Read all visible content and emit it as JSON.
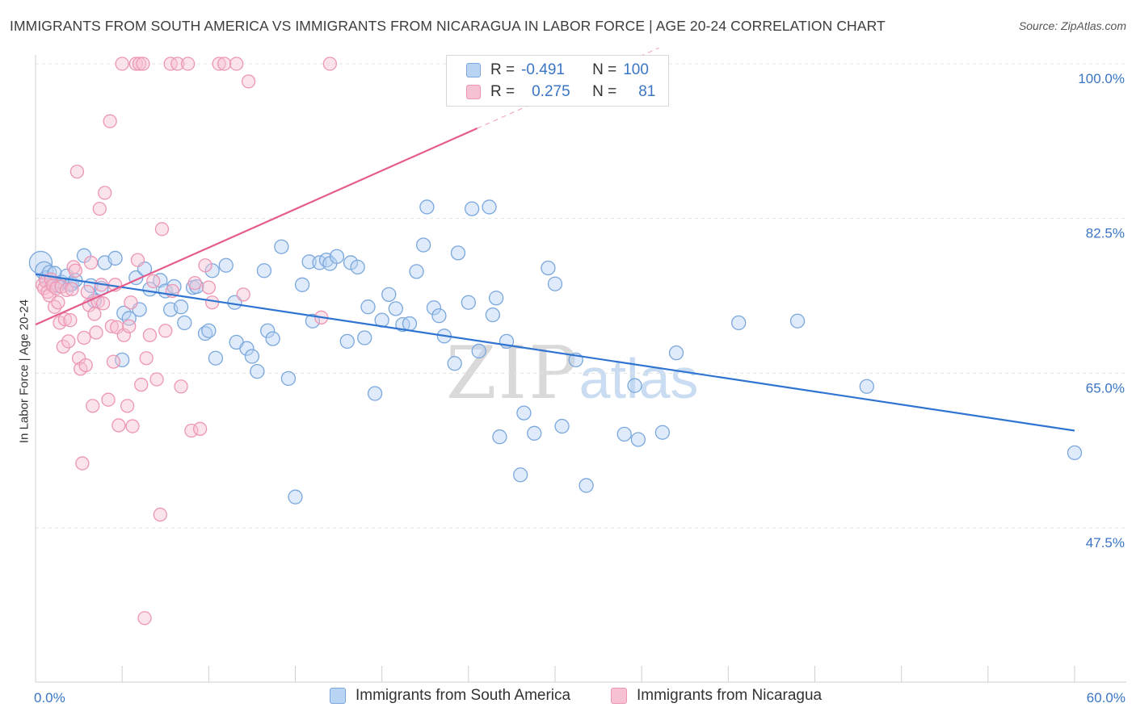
{
  "title": "IMMIGRANTS FROM SOUTH AMERICA VS IMMIGRANTS FROM NICARAGUA IN LABOR FORCE | AGE 20-24 CORRELATION CHART",
  "source": "Source: ZipAtlas.com",
  "watermark": {
    "zip": "ZIP",
    "atlas": "atlas"
  },
  "legend": {
    "r_label": "R =",
    "n_label": "N =",
    "rows": [
      {
        "r": "-0.491",
        "n": "100"
      },
      {
        "r": "0.275",
        "n": "81"
      }
    ]
  },
  "colors": {
    "blue_fill": "#b9d3f3",
    "blue_stroke": "#7aa7dc",
    "blue_line": "#2f74d0",
    "pink_fill": "#f6c1d2",
    "pink_stroke": "#ec96b3",
    "pink_line": "#e55b8a",
    "tick_text": "#3a75c4",
    "grid": "#e3e3e3"
  },
  "chart_data": {
    "type": "scatter",
    "title": "IMMIGRANTS FROM SOUTH AMERICA VS IMMIGRANTS FROM NICARAGUA IN LABOR FORCE | AGE 20-24 CORRELATION CHART",
    "xlabel": "",
    "ylabel": "In Labor Force | Age 20-24",
    "xlim": [
      0,
      60
    ],
    "ylim": [
      30,
      100
    ],
    "x_tick_labels": [
      "0.0%",
      "60.0%"
    ],
    "y_ticks": [
      47.5,
      65.0,
      82.5,
      100.0
    ],
    "y_tick_labels": [
      "47.5%",
      "65.0%",
      "82.5%",
      "100.0%"
    ],
    "grid": true,
    "legend_position": "bottom",
    "series": [
      {
        "name": "Immigrants from South America",
        "color": "#7aa7dc",
        "trend": {
          "x": [
            0,
            60
          ],
          "y": [
            76.2,
            58.5
          ]
        },
        "points": [
          [
            0.3,
            77.5
          ],
          [
            0.5,
            76.6
          ],
          [
            0.6,
            75.8
          ],
          [
            0.8,
            76.4
          ],
          [
            1.0,
            75.2
          ],
          [
            1.1,
            76.3
          ],
          [
            1.3,
            74.9
          ],
          [
            1.5,
            75.3
          ],
          [
            1.8,
            76.0
          ],
          [
            2.0,
            75.0
          ],
          [
            2.1,
            75.1
          ],
          [
            2.3,
            75.5
          ],
          [
            2.8,
            78.3
          ],
          [
            3.2,
            74.9
          ],
          [
            3.4,
            73.2
          ],
          [
            3.8,
            74.6
          ],
          [
            4.0,
            77.5
          ],
          [
            4.6,
            78.0
          ],
          [
            5.0,
            66.5
          ],
          [
            5.1,
            71.8
          ],
          [
            5.4,
            71.2
          ],
          [
            5.8,
            75.8
          ],
          [
            6.0,
            72.2
          ],
          [
            6.3,
            76.8
          ],
          [
            6.6,
            74.5
          ],
          [
            7.2,
            75.5
          ],
          [
            7.5,
            74.3
          ],
          [
            7.8,
            72.2
          ],
          [
            8.0,
            74.8
          ],
          [
            8.4,
            72.5
          ],
          [
            8.6,
            70.7
          ],
          [
            9.1,
            74.7
          ],
          [
            9.3,
            74.8
          ],
          [
            9.8,
            69.5
          ],
          [
            10.0,
            69.8
          ],
          [
            10.2,
            76.6
          ],
          [
            10.4,
            66.7
          ],
          [
            11.0,
            77.2
          ],
          [
            11.5,
            73.0
          ],
          [
            11.6,
            68.5
          ],
          [
            12.2,
            67.8
          ],
          [
            12.5,
            66.9
          ],
          [
            12.8,
            65.2
          ],
          [
            13.2,
            76.6
          ],
          [
            13.4,
            69.8
          ],
          [
            13.7,
            68.9
          ],
          [
            14.2,
            79.3
          ],
          [
            14.6,
            64.4
          ],
          [
            15.0,
            51.0
          ],
          [
            15.4,
            75.0
          ],
          [
            15.8,
            77.6
          ],
          [
            16.0,
            70.9
          ],
          [
            16.4,
            77.5
          ],
          [
            16.8,
            77.8
          ],
          [
            17.0,
            77.4
          ],
          [
            17.4,
            78.2
          ],
          [
            18.0,
            68.6
          ],
          [
            18.2,
            77.5
          ],
          [
            18.6,
            77.0
          ],
          [
            19.0,
            69.0
          ],
          [
            19.2,
            72.5
          ],
          [
            19.6,
            62.7
          ],
          [
            20.0,
            71.0
          ],
          [
            20.4,
            73.9
          ],
          [
            20.8,
            72.3
          ],
          [
            21.2,
            70.5
          ],
          [
            21.6,
            70.6
          ],
          [
            22.0,
            76.5
          ],
          [
            22.4,
            79.5
          ],
          [
            22.6,
            83.8
          ],
          [
            23.0,
            72.4
          ],
          [
            23.3,
            71.5
          ],
          [
            23.6,
            69.2
          ],
          [
            24.2,
            66.1
          ],
          [
            24.4,
            78.6
          ],
          [
            25.0,
            73.0
          ],
          [
            25.2,
            83.6
          ],
          [
            25.6,
            67.5
          ],
          [
            26.2,
            83.8
          ],
          [
            26.4,
            71.6
          ],
          [
            26.6,
            73.5
          ],
          [
            26.8,
            57.8
          ],
          [
            27.2,
            68.6
          ],
          [
            28.0,
            53.5
          ],
          [
            28.2,
            60.5
          ],
          [
            28.8,
            58.2
          ],
          [
            29.6,
            76.9
          ],
          [
            30.0,
            75.1
          ],
          [
            30.4,
            59.0
          ],
          [
            31.2,
            66.5
          ],
          [
            31.8,
            52.3
          ],
          [
            34.0,
            58.1
          ],
          [
            34.6,
            63.6
          ],
          [
            34.8,
            57.5
          ],
          [
            36.2,
            58.3
          ],
          [
            37.0,
            67.3
          ],
          [
            40.6,
            70.7
          ],
          [
            44.0,
            70.9
          ],
          [
            48.0,
            63.5
          ],
          [
            60.0,
            56.0
          ]
        ]
      },
      {
        "name": "Immigrants from Nicaragua",
        "color": "#ec96b3",
        "trend": {
          "x": [
            0,
            25.5
          ],
          "y": [
            70.5,
            92.7
          ]
        },
        "trend_dashed": {
          "x": [
            25.5,
            36
          ],
          "y": [
            92.7,
            101.8
          ]
        },
        "points": [
          [
            0.4,
            75.0
          ],
          [
            0.5,
            74.6
          ],
          [
            0.6,
            75.4
          ],
          [
            0.7,
            74.2
          ],
          [
            0.8,
            73.8
          ],
          [
            0.9,
            75.6
          ],
          [
            1.0,
            74.9
          ],
          [
            1.1,
            72.5
          ],
          [
            1.2,
            74.6
          ],
          [
            1.3,
            73.0
          ],
          [
            1.4,
            70.7
          ],
          [
            1.5,
            74.8
          ],
          [
            1.6,
            68.0
          ],
          [
            1.7,
            71.1
          ],
          [
            1.8,
            74.4
          ],
          [
            1.9,
            68.6
          ],
          [
            2.0,
            71.0
          ],
          [
            2.1,
            74.5
          ],
          [
            2.2,
            77.0
          ],
          [
            2.3,
            76.6
          ],
          [
            2.4,
            87.8
          ],
          [
            2.5,
            66.7
          ],
          [
            2.6,
            65.5
          ],
          [
            2.7,
            54.8
          ],
          [
            2.8,
            69.0
          ],
          [
            2.9,
            65.9
          ],
          [
            3.0,
            74.2
          ],
          [
            3.1,
            72.7
          ],
          [
            3.2,
            77.5
          ],
          [
            3.3,
            61.3
          ],
          [
            3.4,
            71.7
          ],
          [
            3.5,
            69.6
          ],
          [
            3.6,
            73.1
          ],
          [
            3.7,
            83.6
          ],
          [
            3.8,
            75.0
          ],
          [
            3.9,
            72.9
          ],
          [
            4.0,
            85.4
          ],
          [
            4.2,
            62.0
          ],
          [
            4.3,
            93.5
          ],
          [
            4.4,
            70.3
          ],
          [
            4.5,
            66.3
          ],
          [
            4.6,
            75.0
          ],
          [
            4.7,
            70.2
          ],
          [
            4.8,
            59.1
          ],
          [
            5.0,
            100.0
          ],
          [
            5.1,
            69.3
          ],
          [
            5.3,
            61.3
          ],
          [
            5.4,
            70.3
          ],
          [
            5.5,
            73.0
          ],
          [
            5.6,
            59.0
          ],
          [
            5.8,
            100.0
          ],
          [
            5.9,
            77.8
          ],
          [
            6.0,
            100.0
          ],
          [
            6.1,
            63.7
          ],
          [
            6.2,
            100.0
          ],
          [
            6.3,
            37.3
          ],
          [
            6.4,
            66.7
          ],
          [
            6.6,
            69.3
          ],
          [
            6.8,
            75.4
          ],
          [
            7.0,
            64.3
          ],
          [
            7.2,
            49.0
          ],
          [
            7.3,
            81.3
          ],
          [
            7.5,
            69.8
          ],
          [
            7.8,
            100.0
          ],
          [
            7.9,
            74.3
          ],
          [
            8.2,
            100.0
          ],
          [
            8.4,
            63.5
          ],
          [
            8.8,
            100.0
          ],
          [
            9.0,
            58.5
          ],
          [
            9.2,
            75.2
          ],
          [
            9.5,
            58.7
          ],
          [
            9.8,
            77.2
          ],
          [
            10.0,
            74.7
          ],
          [
            10.2,
            73.0
          ],
          [
            10.6,
            100.0
          ],
          [
            10.9,
            100.0
          ],
          [
            11.6,
            100.0
          ],
          [
            12.0,
            73.9
          ],
          [
            12.3,
            98.0
          ],
          [
            16.5,
            71.3
          ],
          [
            17.0,
            100.0
          ]
        ]
      }
    ]
  }
}
